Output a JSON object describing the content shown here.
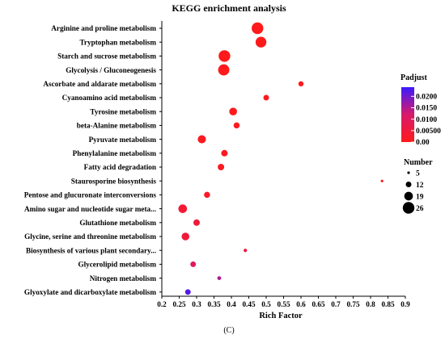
{
  "chart_data": {
    "type": "scatter",
    "title": "KEGG enrichment analysis",
    "xlabel": "Rich Factor",
    "ylabel": "",
    "xlim": [
      0.2,
      0.9
    ],
    "xticks": [
      "0.2",
      "0.25",
      "0.3",
      "0.35",
      "0.4",
      "0.45",
      "0.5",
      "0.55",
      "0.6",
      "0.65",
      "0.7",
      "0.75",
      "0.8",
      "0.85",
      "0.9"
    ],
    "grid": false,
    "categories": [
      "Arginine and proline metabolism",
      "Tryptophan metabolism",
      "Starch and sucrose metabolism",
      "Glycolysis / Gluconeogenesis",
      "Ascorbate and aldarate metabolism",
      "Cyanoamino acid metabolism",
      "Tyrosine metabolism",
      "beta-Alanine metabolism",
      "Pyruvate metabolism",
      "Phenylalanine metabolism",
      "Fatty acid degradation",
      "Staurosporine biosynthesis",
      "Pentose and glucuronate interconversions",
      "Amino sugar and nucleotide sugar meta...",
      "Glutathione metabolism",
      "Glycine, serine and threonine metabolism",
      "Biosynthesis of various plant secondary...",
      "Glycerolipid metabolism",
      "Nitrogen metabolism",
      "Glyoxylate and dicarboxylate metabolism"
    ],
    "points": [
      {
        "category": "Arginine and proline metabolism",
        "rich_factor": 0.475,
        "count": 26,
        "padjust": 0.0001
      },
      {
        "category": "Tryptophan metabolism",
        "rich_factor": 0.485,
        "count": 24,
        "padjust": 0.0002
      },
      {
        "category": "Starch and sucrose metabolism",
        "rich_factor": 0.38,
        "count": 26,
        "padjust": 0.0002
      },
      {
        "category": "Glycolysis / Gluconeogenesis",
        "rich_factor": 0.378,
        "count": 25,
        "padjust": 0.0003
      },
      {
        "category": "Ascorbate and aldarate metabolism",
        "rich_factor": 0.6,
        "count": 11,
        "padjust": 0.0004
      },
      {
        "category": "Cyanoamino acid metabolism",
        "rich_factor": 0.5,
        "count": 12,
        "padjust": 0.0005
      },
      {
        "category": "Tyrosine metabolism",
        "rich_factor": 0.405,
        "count": 17,
        "padjust": 0.0006
      },
      {
        "category": "beta-Alanine metabolism",
        "rich_factor": 0.415,
        "count": 13,
        "padjust": 0.0007
      },
      {
        "category": "Pyruvate metabolism",
        "rich_factor": 0.315,
        "count": 18,
        "padjust": 0.0009
      },
      {
        "category": "Phenylalanine metabolism",
        "rich_factor": 0.38,
        "count": 14,
        "padjust": 0.001
      },
      {
        "category": "Fatty acid degradation",
        "rich_factor": 0.37,
        "count": 14,
        "padjust": 0.0011
      },
      {
        "category": "Staurosporine biosynthesis",
        "rich_factor": 0.833,
        "count": 5,
        "padjust": 0.0012
      },
      {
        "category": "Pentose and glucuronate interconversions",
        "rich_factor": 0.33,
        "count": 13,
        "padjust": 0.002
      },
      {
        "category": "Amino sugar and nucleotide sugar meta...",
        "rich_factor": 0.26,
        "count": 19,
        "padjust": 0.004
      },
      {
        "category": "Glutathione metabolism",
        "rich_factor": 0.3,
        "count": 14,
        "padjust": 0.0045
      },
      {
        "category": "Glycine, serine and threonine metabolism",
        "rich_factor": 0.268,
        "count": 17,
        "padjust": 0.005
      },
      {
        "category": "Biosynthesis of various plant secondary...",
        "rich_factor": 0.44,
        "count": 7,
        "padjust": 0.006
      },
      {
        "category": "Glycerolipid metabolism",
        "rich_factor": 0.29,
        "count": 12,
        "padjust": 0.01
      },
      {
        "category": "Nitrogen metabolism",
        "rich_factor": 0.365,
        "count": 8,
        "padjust": 0.015
      },
      {
        "category": "Glyoxylate and dicarboxylate metabolism",
        "rich_factor": 0.275,
        "count": 12,
        "padjust": 0.022
      }
    ],
    "color_legend": {
      "title": "Padjust",
      "ticks": [
        "0.0200",
        "0.0150",
        "0.0100",
        "0.00500",
        "0.00"
      ],
      "low_color": "#ff1a1a",
      "high_color": "#3b1aff",
      "domain": [
        0,
        0.024
      ]
    },
    "size_legend": {
      "title": "Number",
      "entries": [
        {
          "label": "5",
          "value": 5
        },
        {
          "label": "12",
          "value": 12
        },
        {
          "label": "19",
          "value": 19
        },
        {
          "label": "26",
          "value": 26
        }
      ]
    }
  },
  "caption": "(C)"
}
